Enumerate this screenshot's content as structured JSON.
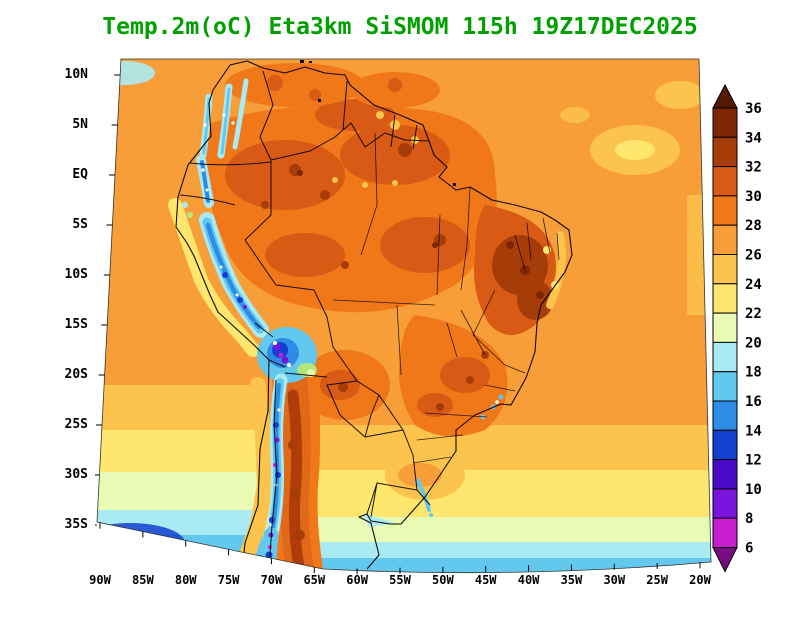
{
  "title": "Temp.2m(oC) Eta3km SiSMOM 115h 19Z17DEC2025",
  "title_color": "#00a000",
  "axes": {
    "lat_labels": [
      "10N",
      "5N",
      "EQ",
      "5S",
      "10S",
      "15S",
      "20S",
      "25S",
      "30S",
      "35S"
    ],
    "lon_labels": [
      "90W",
      "85W",
      "80W",
      "75W",
      "70W",
      "65W",
      "60W",
      "55W",
      "50W",
      "45W",
      "40W",
      "35W",
      "30W",
      "25W",
      "20W"
    ]
  },
  "colorbar": {
    "tick_labels": [
      "36",
      "34",
      "32",
      "30",
      "28",
      "26",
      "24",
      "22",
      "20",
      "18",
      "16",
      "14",
      "12",
      "10",
      "8",
      "6"
    ],
    "colors_top_to_bottom": [
      "#551800",
      "#7e2604",
      "#a63c08",
      "#d85a14",
      "#f07818",
      "#f89e38",
      "#fcc44c",
      "#ffe66e",
      "#e8fab4",
      "#aaeaf2",
      "#62c8ee",
      "#2e8ce6",
      "#1440d2",
      "#4b0ac8",
      "#7a14dc",
      "#c81ed2",
      "#780a82"
    ]
  }
}
